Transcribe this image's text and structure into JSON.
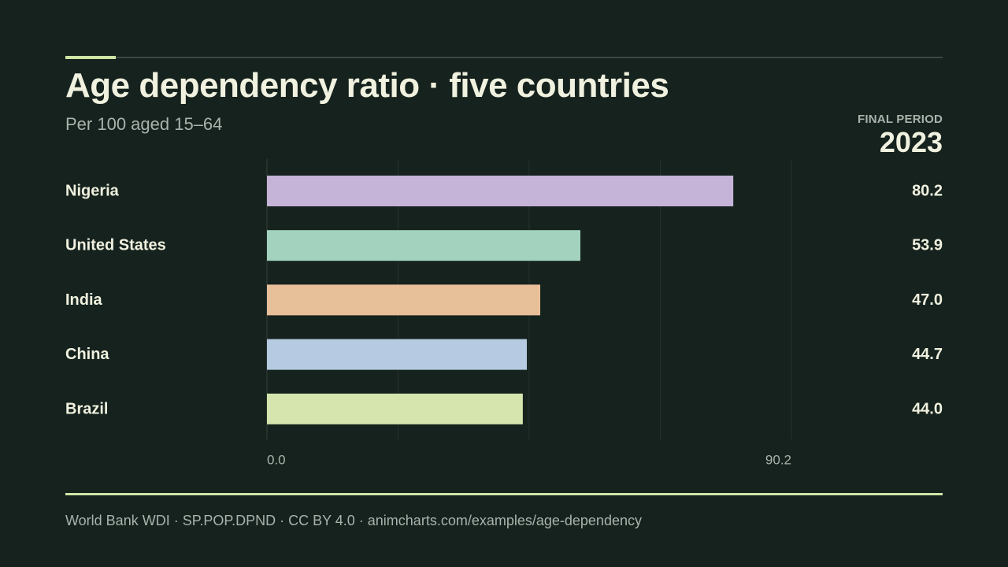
{
  "header": {
    "title": "Age dependency ratio · five countries",
    "subtitle": "Per 100 aged 15–64",
    "period_label": "FINAL PERIOD",
    "period_value": "2023"
  },
  "chart_data": {
    "type": "bar",
    "orientation": "horizontal",
    "categories": [
      "Nigeria",
      "United States",
      "India",
      "China",
      "Brazil"
    ],
    "values": [
      80.2,
      53.9,
      47.0,
      44.7,
      44.0
    ],
    "value_labels": [
      "80.2",
      "53.9",
      "47.0",
      "44.7",
      "44.0"
    ],
    "colors": [
      "#c5b3d8",
      "#a3d2bf",
      "#e7bf99",
      "#b6cbe1",
      "#d5e5ad"
    ],
    "xlim": [
      0,
      90.2
    ],
    "x_ticks": [
      "0.0",
      "90.2"
    ],
    "grid": true
  },
  "footer": {
    "source": "World Bank WDI · SP.POP.DPND · CC BY 4.0 · animcharts.com/examples/age-dependency"
  }
}
